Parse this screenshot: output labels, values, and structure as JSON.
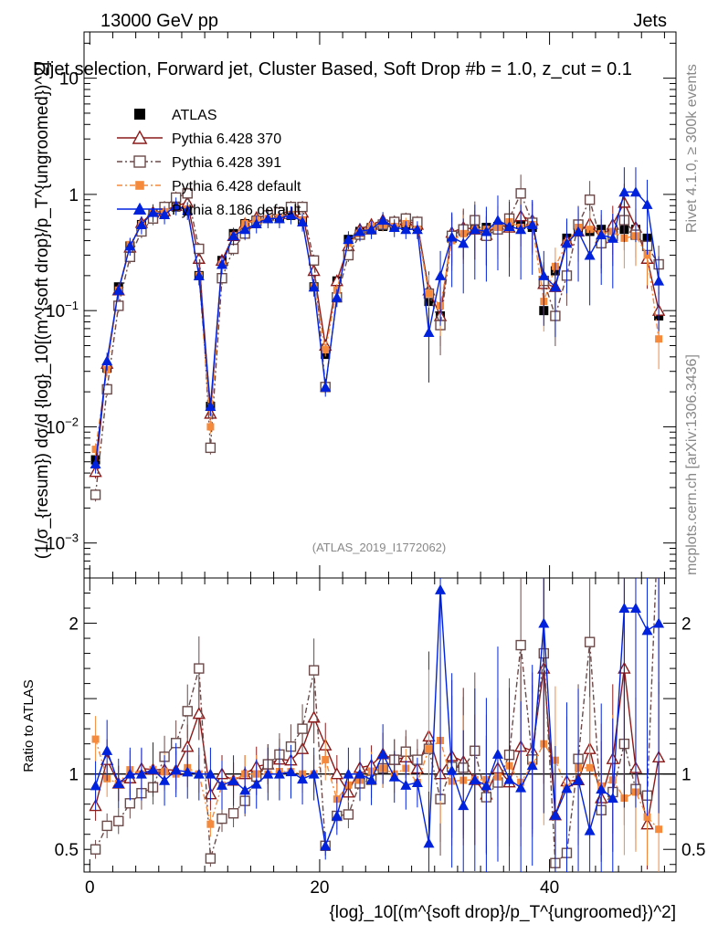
{
  "header": {
    "energy_label": "13000 GeV pp",
    "process_label": "Jets",
    "plot_title": "Dijet selection, Forward jet, Cluster Based, Soft Drop #b = 1.0, z_cut = 0.1",
    "analysis_id": "(ATLAS_2019_I1772062)",
    "rivet_label": "Rivet 4.1.0, ≥ 300k events",
    "mcplots_label": "mcplots.cern.ch [arXiv:1306.3436]"
  },
  "legend": [
    {
      "label": "ATLAS",
      "color": "#000000",
      "marker": "filled-square"
    },
    {
      "label": "Pythia 6.428 370",
      "color": "#8b1a1a",
      "marker": "open-triangle"
    },
    {
      "label": "Pythia 6.428 391",
      "color": "#6b4a4a",
      "marker": "open-square"
    },
    {
      "label": "Pythia 6.428 default",
      "color": "#f58a3c",
      "marker": "filled-circle"
    },
    {
      "label": "Pythia 8.186 default",
      "color": "#0022dd",
      "marker": "filled-triangle"
    }
  ],
  "chart_data": {
    "type": "line",
    "title": "Dijet selection, Forward jet, Cluster Based, Soft Drop #b = 1.0, z_cut = 0.1",
    "xlabel": "{log}_10[(m^{soft drop}/p_T^{ungroomed})^2]",
    "ylabel": "(1/σ_{resum}) dσ/d {log}_10[(m^{soft drop}/p_T^{ungroomed})^2]",
    "ratio_ylabel": "Ratio to ATLAS",
    "xlim": [
      -0.5,
      51
    ],
    "ylim": [
      0.0005,
      25
    ],
    "yscale": "log",
    "ratio_ylim": [
      0.35,
      2.3
    ],
    "x_ticks": [
      "0",
      "20",
      "40"
    ],
    "y_ticks": [
      "10",
      "1",
      "10^-1",
      "10^-2",
      "10^-3"
    ],
    "ratio_ticks": [
      "2",
      "1",
      "0.5"
    ],
    "x": [
      0.5,
      1.5,
      2.5,
      3.5,
      4.5,
      5.5,
      6.5,
      7.5,
      8.5,
      9.5,
      10.5,
      11.5,
      12.5,
      13.5,
      14.5,
      15.5,
      16.5,
      17.5,
      18.5,
      19.5,
      20.5,
      21.5,
      22.5,
      23.5,
      24.5,
      25.5,
      26.5,
      27.5,
      28.5,
      29.5,
      30.5,
      31.5,
      32.5,
      33.5,
      34.5,
      35.5,
      36.5,
      37.5,
      38.5,
      39.5,
      40.5,
      41.5,
      42.5,
      43.5,
      44.5,
      45.5,
      46.5,
      47.5,
      48.5,
      49.5
    ],
    "series": [
      {
        "name": "ATLAS",
        "values": [
          0.0052,
          0.032,
          0.16,
          0.36,
          0.55,
          0.68,
          0.7,
          0.78,
          0.72,
          0.2,
          0.015,
          0.27,
          0.46,
          0.56,
          0.6,
          0.62,
          0.62,
          0.66,
          0.6,
          0.16,
          0.042,
          0.18,
          0.41,
          0.48,
          0.52,
          0.53,
          0.53,
          0.54,
          0.53,
          0.12,
          0.09,
          0.42,
          0.48,
          0.52,
          0.52,
          0.53,
          0.55,
          0.55,
          0.52,
          0.1,
          0.22,
          0.42,
          0.5,
          0.48,
          0.5,
          0.5,
          0.5,
          0.5,
          0.42,
          0.09
        ]
      },
      {
        "name": "Pythia 6.428 370",
        "values": [
          0.0041,
          0.035,
          0.15,
          0.35,
          0.57,
          0.7,
          0.72,
          0.8,
          0.85,
          0.28,
          0.013,
          0.27,
          0.44,
          0.56,
          0.63,
          0.66,
          0.68,
          0.72,
          0.7,
          0.22,
          0.05,
          0.18,
          0.36,
          0.5,
          0.55,
          0.6,
          0.58,
          0.6,
          0.55,
          0.15,
          0.09,
          0.47,
          0.52,
          0.5,
          0.45,
          0.55,
          0.52,
          0.65,
          0.6,
          0.17,
          0.16,
          0.4,
          0.48,
          0.56,
          0.42,
          0.55,
          0.85,
          0.52,
          0.28,
          0.1
        ]
      },
      {
        "name": "Pythia 6.428 391",
        "values": [
          0.0026,
          0.021,
          0.11,
          0.29,
          0.48,
          0.62,
          0.78,
          0.94,
          1.02,
          0.34,
          0.0066,
          0.19,
          0.34,
          0.46,
          0.59,
          0.66,
          0.7,
          0.78,
          0.78,
          0.27,
          0.022,
          0.13,
          0.3,
          0.45,
          0.5,
          0.55,
          0.58,
          0.62,
          0.58,
          0.14,
          0.075,
          0.44,
          0.5,
          0.6,
          0.44,
          0.5,
          0.62,
          1.02,
          0.57,
          0.18,
          0.09,
          0.2,
          0.55,
          0.9,
          0.38,
          0.44,
          0.6,
          0.45,
          0.36,
          0.25
        ]
      },
      {
        "name": "Pythia 6.428 default",
        "values": [
          0.0064,
          0.031,
          0.15,
          0.37,
          0.55,
          0.7,
          0.71,
          0.78,
          0.75,
          0.2,
          0.01,
          0.25,
          0.44,
          0.56,
          0.6,
          0.62,
          0.63,
          0.67,
          0.6,
          0.16,
          0.046,
          0.15,
          0.38,
          0.46,
          0.53,
          0.55,
          0.53,
          0.56,
          0.5,
          0.14,
          0.11,
          0.4,
          0.46,
          0.5,
          0.5,
          0.52,
          0.58,
          0.52,
          0.55,
          0.12,
          0.24,
          0.38,
          0.52,
          0.5,
          0.46,
          0.48,
          0.42,
          0.44,
          0.3,
          0.057
        ]
      },
      {
        "name": "Pythia 8.186 default",
        "values": [
          0.0048,
          0.037,
          0.15,
          0.36,
          0.55,
          0.7,
          0.67,
          0.8,
          0.73,
          0.2,
          0.015,
          0.25,
          0.44,
          0.5,
          0.56,
          0.62,
          0.62,
          0.67,
          0.58,
          0.16,
          0.022,
          0.13,
          0.41,
          0.48,
          0.5,
          0.6,
          0.52,
          0.5,
          0.5,
          0.065,
          0.2,
          0.43,
          0.38,
          0.5,
          0.48,
          0.6,
          0.53,
          0.5,
          0.55,
          0.2,
          0.16,
          0.38,
          0.48,
          0.3,
          0.45,
          0.42,
          1.05,
          1.05,
          0.82,
          0.18
        ]
      }
    ]
  }
}
